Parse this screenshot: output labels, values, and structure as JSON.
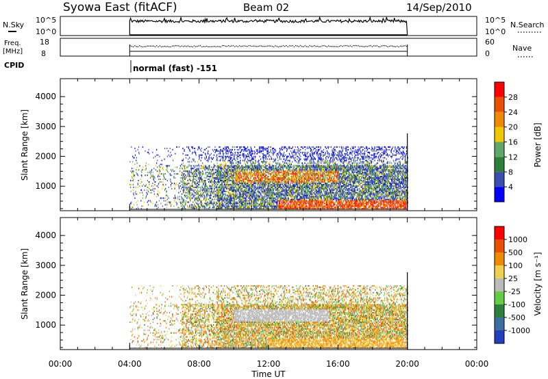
{
  "header": {
    "station": "Syowa East (fitACF)",
    "beam": "Beam 02",
    "date": "14/Sep/2010"
  },
  "panels": {
    "nsky": {
      "label": "N.Sky",
      "ticks": [
        "10^5",
        "10^0"
      ],
      "right_ticks": [
        "10^5",
        "10^0"
      ],
      "right_label": "N.Search"
    },
    "freq": {
      "label_line1": "Freq.",
      "label_line2": "[MHz]",
      "ticks": [
        "18",
        "8"
      ],
      "right_ticks": [
        "60",
        "0"
      ],
      "right_label": "Nave"
    },
    "cpid": {
      "label": "CPID",
      "text": "normal (fast) -151"
    }
  },
  "chart_data": [
    {
      "type": "heatmap",
      "name": "power",
      "ylabel": "Slant Range [km]",
      "yticks": [
        "4000",
        "3000",
        "2000",
        "1000"
      ],
      "ytick_values": [
        4000,
        3000,
        2000,
        1000
      ],
      "ylim": [
        180,
        4600
      ],
      "xlim": [
        0,
        24
      ],
      "colorbar": {
        "label": "Power [dB]",
        "ticks": [
          "28",
          "24",
          "20",
          "16",
          "12",
          "8",
          "4"
        ],
        "colors": [
          "#0000ff",
          "#3a4fb0",
          "#2e7f3a",
          "#5fa86a",
          "#f0c800",
          "#f08a00",
          "#e85000",
          "#ff0000"
        ]
      }
    },
    {
      "type": "heatmap",
      "name": "velocity",
      "ylabel": "Slant Range [km]",
      "yticks": [
        "4000",
        "3000",
        "2000",
        "1000"
      ],
      "ytick_values": [
        4000,
        3000,
        2000,
        1000
      ],
      "ylim": [
        180,
        4600
      ],
      "xlim": [
        0,
        24
      ],
      "colorbar": {
        "label": "Velocity [m s⁻¹]",
        "ticks": [
          "1000",
          "500",
          "100",
          "25",
          "-25",
          "-100",
          "-500",
          "-1000"
        ],
        "colors": [
          "#2040c0",
          "#3a6fa0",
          "#2e7f3a",
          "#66cc44",
          "#bbbbbb",
          "#f0d050",
          "#f08a00",
          "#e85000",
          "#ff0000"
        ]
      }
    }
  ],
  "xaxis": {
    "label": "Time UT",
    "ticks": [
      "00:00",
      "04:00",
      "08:00",
      "12:00",
      "16:00",
      "20:00",
      "00:00"
    ],
    "tick_hours": [
      0,
      4,
      8,
      12,
      16,
      20,
      24
    ]
  },
  "data_window_hours": [
    4,
    20
  ]
}
